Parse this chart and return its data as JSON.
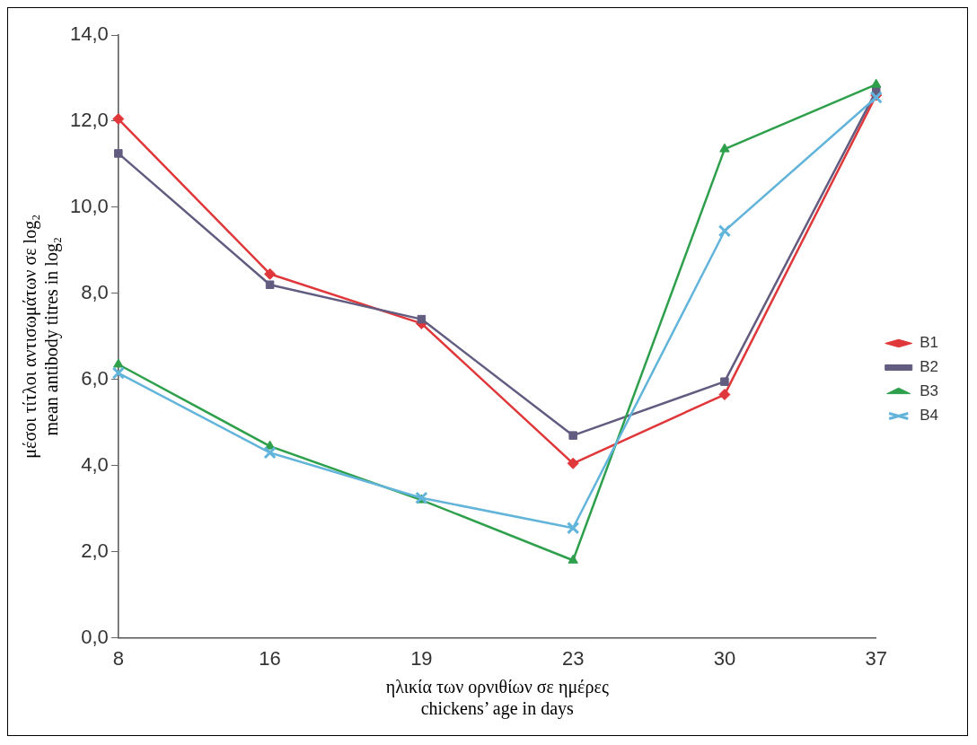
{
  "chart_data": {
    "type": "line",
    "xlabel": [
      "ηλικία των ορνιθίων σε ημέρες",
      "chickens’ age in days"
    ],
    "ylabel": [
      "μέσοι τίτλοι αντισωμάτων σε log₂",
      "mean antibody titres in log₂"
    ],
    "categories": [
      "8",
      "16",
      "19",
      "23",
      "30",
      "37"
    ],
    "series": [
      {
        "name": "B1",
        "color": "#e0373a",
        "marker": "diamond",
        "values": [
          12.05,
          8.45,
          7.3,
          4.05,
          5.65,
          12.6
        ]
      },
      {
        "name": "B2",
        "color": "#625c80",
        "marker": "square",
        "values": [
          11.25,
          8.2,
          7.4,
          4.7,
          5.95,
          12.7
        ]
      },
      {
        "name": "B3",
        "color": "#2ea04c",
        "marker": "triangle",
        "values": [
          6.35,
          4.45,
          3.2,
          1.8,
          11.35,
          12.85
        ]
      },
      {
        "name": "B4",
        "color": "#62b4da",
        "marker": "cross",
        "values": [
          6.15,
          4.3,
          3.25,
          2.55,
          9.45,
          12.55
        ]
      }
    ],
    "ylim": [
      0,
      14
    ],
    "yticks": [
      {
        "value": 0,
        "label": "0,0"
      },
      {
        "value": 2,
        "label": "2,0"
      },
      {
        "value": 4,
        "label": "4,0"
      },
      {
        "value": 6,
        "label": "6,0"
      },
      {
        "value": 8,
        "label": "8,0"
      },
      {
        "value": 10,
        "label": "10,0"
      },
      {
        "value": 12,
        "label": "12,0"
      },
      {
        "value": 14,
        "label": "14,0"
      }
    ],
    "grid": false,
    "legend": "right",
    "line_style": "solid"
  }
}
